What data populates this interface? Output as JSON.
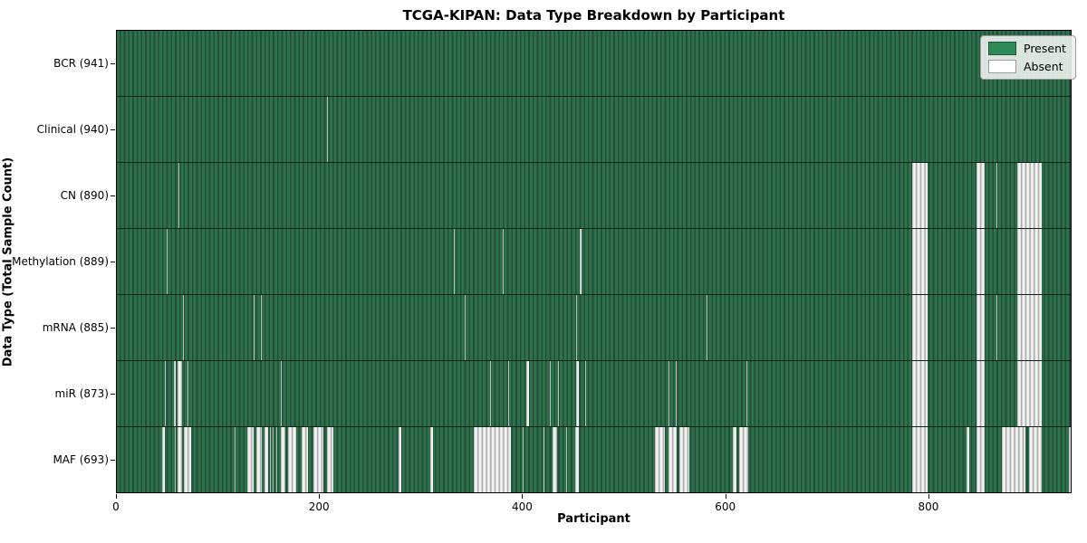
{
  "title": "TCGA-KIPAN: Data Type Breakdown by Participant",
  "x_axis": {
    "label": "Participant",
    "ticks": [
      0,
      200,
      400,
      600,
      800
    ],
    "min": 0,
    "max": 941
  },
  "y_axis": {
    "label": "Data Type (Total Sample Count)"
  },
  "legend": [
    {
      "label": "Present",
      "color": "#2e8b57",
      "border": "#1d5637"
    },
    {
      "label": "Absent",
      "color": "#ffffff",
      "border": "#9b9b9b"
    }
  ],
  "colors": {
    "present_light": "#2e6f4c",
    "present_dark": "#20503a",
    "absent_light": "#fafafa",
    "absent_dark": "#a2a2a2",
    "plot_border": "#000000",
    "background": "#ffffff"
  },
  "chart_data": {
    "type": "heatmap",
    "title": "TCGA-KIPAN: Data Type Breakdown by Participant",
    "xlabel": "Participant",
    "ylabel": "Data Type (Total Sample Count)",
    "x_range": [
      0,
      941
    ],
    "total_participants": 941,
    "legend_position": "upper right",
    "cell_states": [
      "Present",
      "Absent"
    ],
    "rows": [
      {
        "label": "BCR (941)",
        "data_type": "BCR",
        "total_sample_count": 941,
        "absent_intervals": []
      },
      {
        "label": "Clinical (940)",
        "data_type": "Clinical",
        "total_sample_count": 940,
        "absent_intervals": [
          [
            207,
            208
          ]
        ]
      },
      {
        "label": "CN (890)",
        "data_type": "CN",
        "total_sample_count": 890,
        "absent_intervals": [
          [
            61,
            62
          ],
          [
            785,
            800
          ],
          [
            848,
            856
          ],
          [
            868,
            869
          ],
          [
            888,
            912
          ]
        ]
      },
      {
        "label": "Methylation (889)",
        "data_type": "Methylation",
        "total_sample_count": 889,
        "absent_intervals": [
          [
            49,
            50
          ],
          [
            332,
            333
          ],
          [
            381,
            382
          ],
          [
            457,
            458
          ],
          [
            785,
            800
          ],
          [
            848,
            856
          ],
          [
            888,
            912
          ]
        ]
      },
      {
        "label": "mRNA (885)",
        "data_type": "mRNA",
        "total_sample_count": 885,
        "absent_intervals": [
          [
            65,
            66
          ],
          [
            135,
            136
          ],
          [
            142,
            143
          ],
          [
            343,
            344
          ],
          [
            453,
            454
          ],
          [
            582,
            583
          ],
          [
            785,
            800
          ],
          [
            848,
            856
          ],
          [
            868,
            869
          ],
          [
            888,
            912
          ]
        ]
      },
      {
        "label": "miR (873)",
        "data_type": "miR",
        "total_sample_count": 873,
        "absent_intervals": [
          [
            47,
            48
          ],
          [
            56,
            58
          ],
          [
            60,
            64
          ],
          [
            70,
            71
          ],
          [
            162,
            163
          ],
          [
            368,
            369
          ],
          [
            386,
            387
          ],
          [
            404,
            407
          ],
          [
            427,
            428
          ],
          [
            435,
            436
          ],
          [
            453,
            456
          ],
          [
            462,
            463
          ],
          [
            544,
            545
          ],
          [
            551,
            552
          ],
          [
            621,
            622
          ],
          [
            785,
            800
          ],
          [
            848,
            856
          ],
          [
            888,
            912
          ]
        ]
      },
      {
        "label": "MAF (693)",
        "data_type": "MAF",
        "total_sample_count": 693,
        "absent_intervals": [
          [
            45,
            47
          ],
          [
            57,
            58
          ],
          [
            60,
            64
          ],
          [
            66,
            73
          ],
          [
            116,
            117
          ],
          [
            129,
            135
          ],
          [
            138,
            143
          ],
          [
            146,
            149
          ],
          [
            151,
            152
          ],
          [
            154,
            155
          ],
          [
            157,
            158
          ],
          [
            162,
            166
          ],
          [
            169,
            177
          ],
          [
            182,
            189
          ],
          [
            194,
            204
          ],
          [
            207,
            214
          ],
          [
            278,
            281
          ],
          [
            309,
            312
          ],
          [
            352,
            389
          ],
          [
            400,
            401
          ],
          [
            421,
            422
          ],
          [
            430,
            434
          ],
          [
            443,
            444
          ],
          [
            452,
            456
          ],
          [
            531,
            541
          ],
          [
            544,
            552
          ],
          [
            555,
            565
          ],
          [
            608,
            611
          ],
          [
            614,
            623
          ],
          [
            785,
            800
          ],
          [
            838,
            841
          ],
          [
            848,
            856
          ],
          [
            873,
            896
          ],
          [
            900,
            912
          ],
          [
            939,
            941
          ]
        ]
      }
    ]
  }
}
